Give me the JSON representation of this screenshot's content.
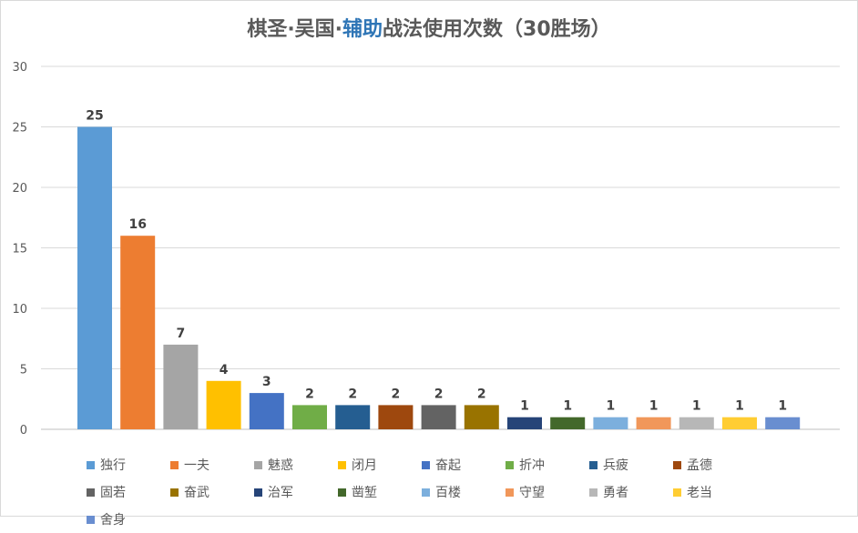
{
  "chart_data": {
    "type": "bar",
    "title_parts": [
      "棋圣·吴国·",
      "辅助",
      "战法使用次数（30胜场）"
    ],
    "xlabel": "",
    "ylabel": "",
    "ylim": [
      0,
      30
    ],
    "yticks": [
      0,
      5,
      10,
      15,
      20,
      25,
      30
    ],
    "grid": true,
    "legend_position": "bottom",
    "categories": [
      "独行",
      "一夫",
      "魅惑",
      "闭月",
      "奋起",
      "折冲",
      "兵疲",
      "孟德",
      "固若",
      "奋武",
      "治军",
      "凿堑",
      "百楼",
      "守望",
      "勇者",
      "老当",
      "舍身"
    ],
    "values": [
      25,
      16,
      7,
      4,
      3,
      2,
      2,
      2,
      2,
      2,
      1,
      1,
      1,
      1,
      1,
      1,
      1
    ],
    "colors": [
      "#5b9bd5",
      "#ed7d31",
      "#a5a5a5",
      "#ffc000",
      "#4472c4",
      "#70ad47",
      "#255e91",
      "#9e480e",
      "#636363",
      "#997300",
      "#264478",
      "#43682b",
      "#7cafdd",
      "#f1975a",
      "#b7b7b7",
      "#ffcd33",
      "#698ed0"
    ]
  }
}
